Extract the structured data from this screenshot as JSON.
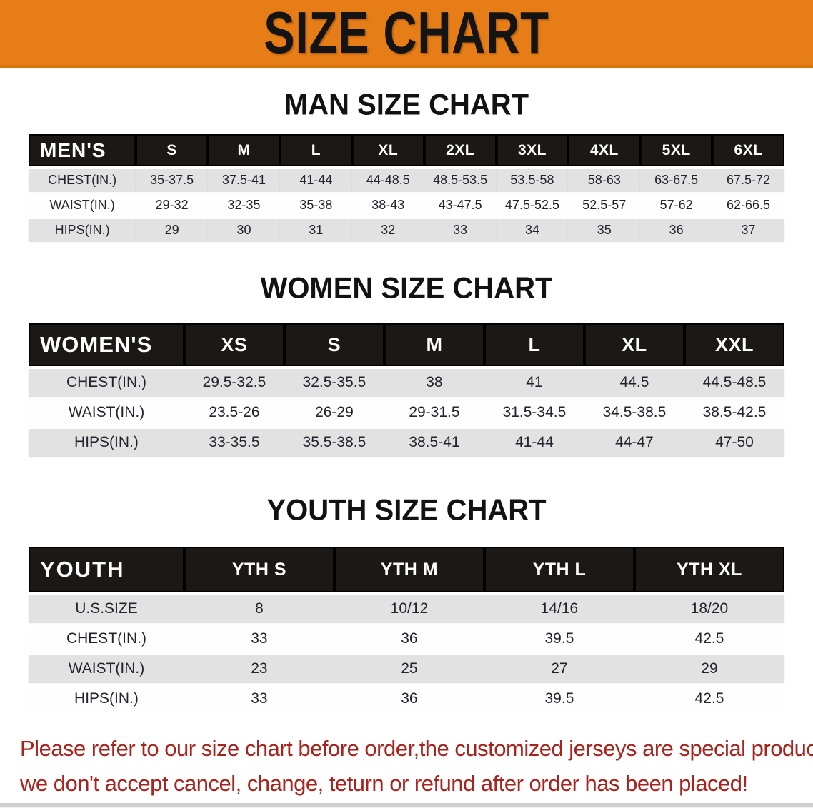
{
  "banner": {
    "title": "SIZE CHART",
    "bg_color": "#e67d17",
    "text_color": "#141414"
  },
  "sections": [
    {
      "heading": "MAN SIZE CHART",
      "table": {
        "header_label": "MEN'S",
        "columns": [
          "S",
          "M",
          "L",
          "XL",
          "2XL",
          "3XL",
          "4XL",
          "5XL",
          "6XL"
        ],
        "rows": [
          {
            "label": "CHEST(IN.)",
            "values": [
              "35-37.5",
              "37.5-41",
              "41-44",
              "44-48.5",
              "48.5-53.5",
              "53.5-58",
              "58-63",
              "63-67.5",
              "67.5-72"
            ]
          },
          {
            "label": "WAIST(IN.)",
            "values": [
              "29-32",
              "32-35",
              "35-38",
              "38-43",
              "43-47.5",
              "47.5-52.5",
              "52.5-57",
              "57-62",
              "62-66.5"
            ]
          },
          {
            "label": "HIPS(IN.)",
            "values": [
              "29",
              "30",
              "31",
              "32",
              "33",
              "34",
              "35",
              "36",
              "37"
            ]
          }
        ]
      }
    },
    {
      "heading": "WOMEN SIZE CHART",
      "table": {
        "header_label": "WOMEN'S",
        "columns": [
          "XS",
          "S",
          "M",
          "L",
          "XL",
          "XXL"
        ],
        "rows": [
          {
            "label": "CHEST(IN.)",
            "values": [
              "29.5-32.5",
              "32.5-35.5",
              "38",
              "41",
              "44.5",
              "44.5-48.5"
            ]
          },
          {
            "label": "WAIST(IN.)",
            "values": [
              "23.5-26",
              "26-29",
              "29-31.5",
              "31.5-34.5",
              "34.5-38.5",
              "38.5-42.5"
            ]
          },
          {
            "label": "HIPS(IN.)",
            "values": [
              "33-35.5",
              "35.5-38.5",
              "38.5-41",
              "41-44",
              "44-47",
              "47-50"
            ]
          }
        ]
      }
    },
    {
      "heading": "YOUTH SIZE CHART",
      "table": {
        "header_label": "YOUTH",
        "columns": [
          "YTH S",
          "YTH M",
          "YTH L",
          "YTH XL"
        ],
        "rows": [
          {
            "label": "U.S.SIZE",
            "values": [
              "8",
              "10/12",
              "14/16",
              "18/20"
            ]
          },
          {
            "label": "CHEST(IN.)",
            "values": [
              "33",
              "36",
              "39.5",
              "42.5"
            ]
          },
          {
            "label": "WAIST(IN.)",
            "values": [
              "23",
              "25",
              "27",
              "29"
            ]
          },
          {
            "label": "HIPS(IN.)",
            "values": [
              "33",
              "36",
              "39.5",
              "42.5"
            ]
          }
        ]
      }
    }
  ],
  "disclaimer": {
    "line1": "Please refer to our size chart before order,the customized jerseys are special products,",
    "line2": "we don't accept cancel, change, teturn or refund after order has been placed!",
    "color": "#a8231d"
  },
  "layout_hints": {
    "first_col_percent": [
      14.2,
      20.6,
      20.6
    ],
    "row_stripe_colors": [
      "#e2e2e2",
      "#fefefe"
    ],
    "header_bar_color": "#1b1816"
  }
}
